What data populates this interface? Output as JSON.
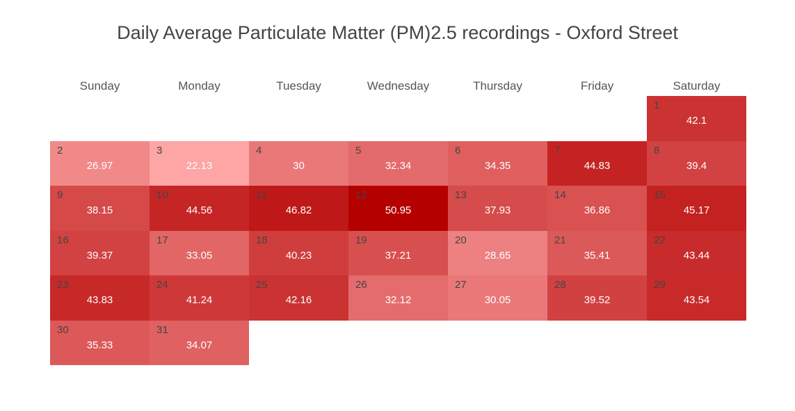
{
  "chart_data": {
    "type": "heatmap",
    "title": "Daily Average Particulate Matter (PM)2.5 recordings - Oxford Street",
    "weekdays": [
      "Sunday",
      "Monday",
      "Tuesday",
      "Wednesday",
      "Thursday",
      "Friday",
      "Saturday"
    ],
    "first_weekday_index": 6,
    "days": [
      1,
      2,
      3,
      4,
      5,
      6,
      7,
      8,
      9,
      10,
      11,
      12,
      13,
      14,
      15,
      16,
      17,
      18,
      19,
      20,
      21,
      22,
      23,
      24,
      25,
      26,
      27,
      28,
      29,
      30,
      31
    ],
    "values": [
      42.1,
      26.97,
      22.13,
      30,
      32.34,
      34.35,
      44.83,
      39.4,
      38.15,
      44.56,
      46.82,
      50.95,
      37.93,
      36.86,
      45.17,
      39.37,
      33.05,
      40.23,
      37.21,
      28.65,
      35.41,
      43.44,
      43.83,
      41.24,
      42.16,
      32.12,
      30.05,
      39.52,
      43.54,
      35.33,
      34.07
    ],
    "value_range": [
      22.13,
      50.95
    ],
    "color_scale": {
      "low": "#fea5a5",
      "high": "#b50000"
    }
  }
}
